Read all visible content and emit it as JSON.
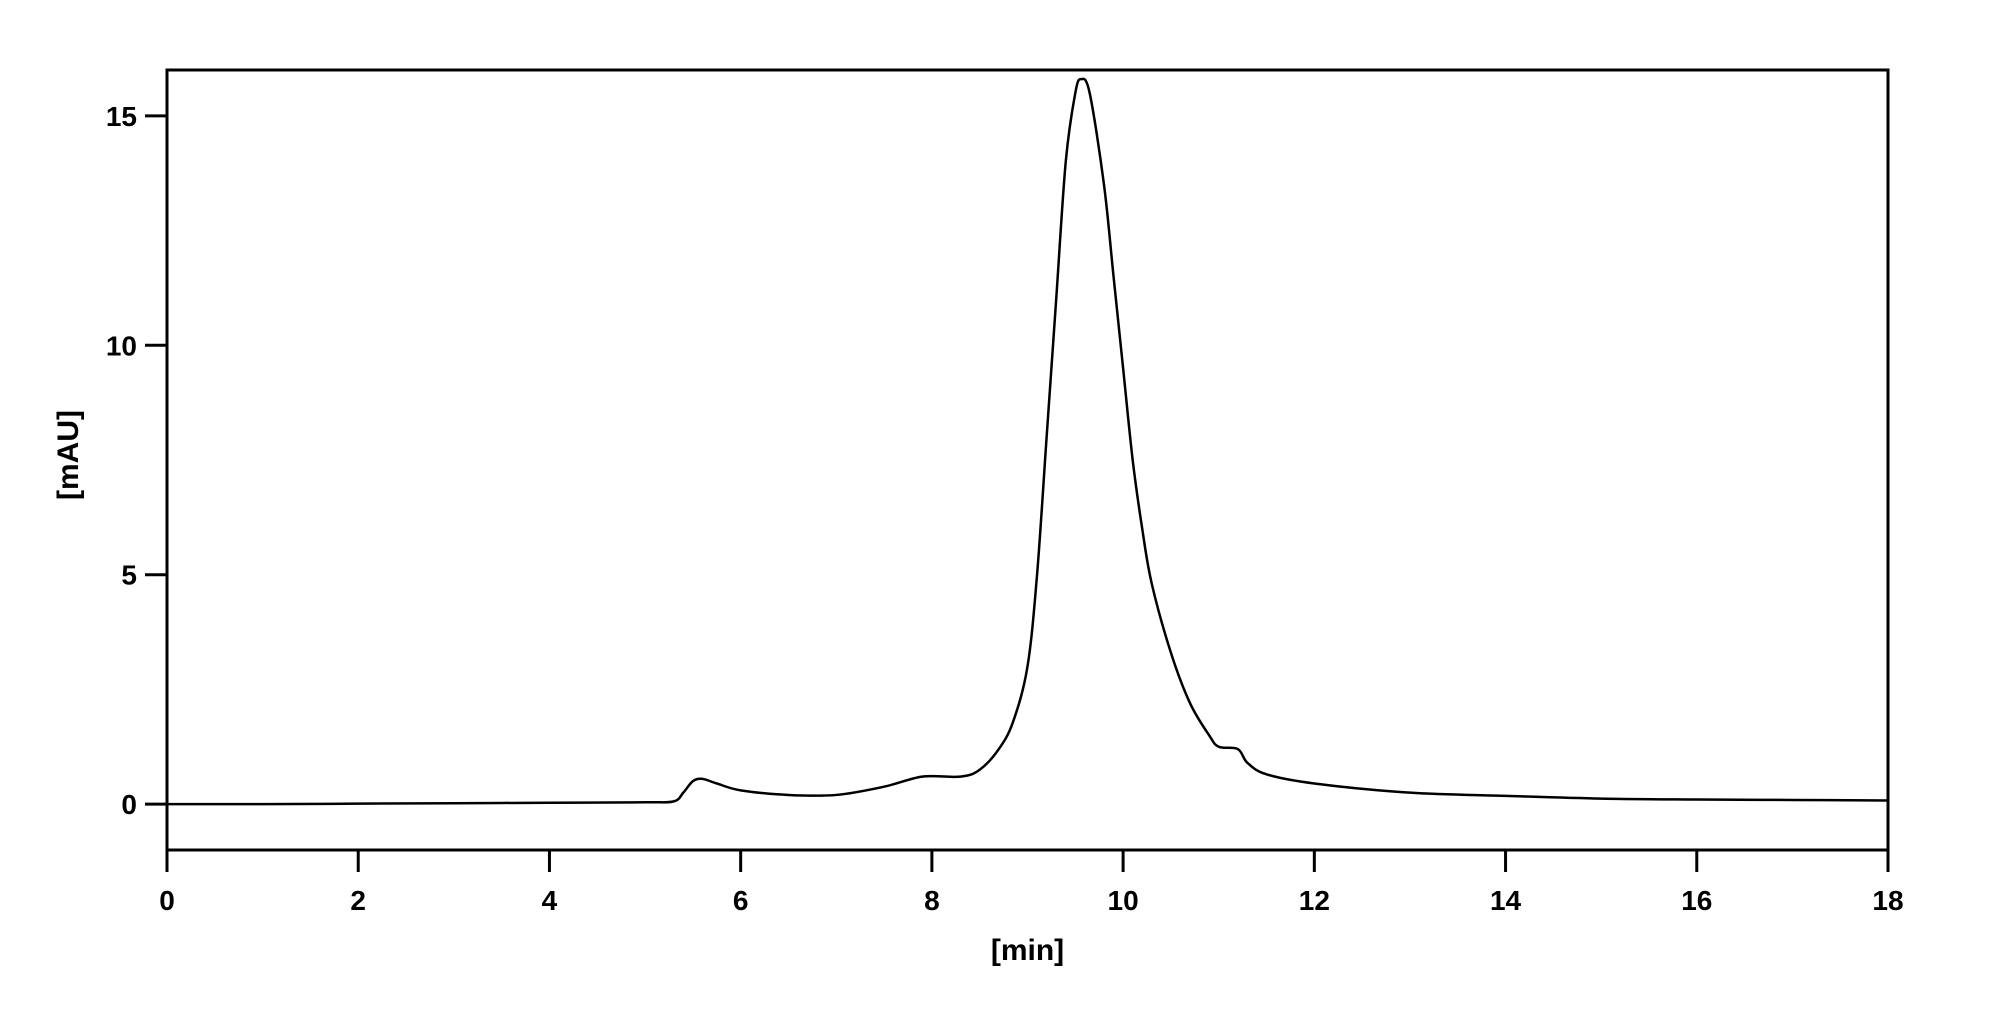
{
  "chart_data": {
    "type": "line",
    "title": "",
    "xlabel": "[min]",
    "ylabel": "[mAU]",
    "xlim": [
      0,
      18
    ],
    "ylim": [
      -1,
      16
    ],
    "xticks": [
      0,
      2,
      4,
      6,
      8,
      10,
      12,
      14,
      16,
      18
    ],
    "yticks": [
      0,
      5,
      10,
      15
    ],
    "grid": false,
    "line_color": "#000000",
    "series": [
      {
        "x": [
          0,
          1,
          2,
          3,
          4,
          5,
          5.3,
          5.4,
          5.5,
          5.6,
          5.75,
          6.0,
          6.5,
          7.0,
          7.5,
          7.9,
          8.3,
          8.5,
          8.7,
          8.85,
          9.0,
          9.1,
          9.2,
          9.3,
          9.4,
          9.5,
          9.56,
          9.65,
          9.8,
          9.9,
          10.0,
          10.1,
          10.2,
          10.3,
          10.5,
          10.7,
          10.9,
          11.0,
          11.2,
          11.3,
          11.5,
          12,
          13,
          14,
          15,
          16,
          17,
          18
        ],
        "y": [
          0.0,
          0.0,
          0.01,
          0.02,
          0.03,
          0.04,
          0.06,
          0.25,
          0.5,
          0.55,
          0.45,
          0.3,
          0.2,
          0.2,
          0.38,
          0.6,
          0.6,
          0.75,
          1.2,
          1.8,
          3.0,
          5.0,
          8.0,
          11.0,
          14.0,
          15.5,
          15.8,
          15.5,
          13.5,
          11.5,
          9.5,
          7.5,
          6.0,
          4.8,
          3.3,
          2.2,
          1.5,
          1.25,
          1.2,
          0.9,
          0.65,
          0.45,
          0.25,
          0.18,
          0.12,
          0.1,
          0.09,
          0.08
        ]
      }
    ]
  }
}
